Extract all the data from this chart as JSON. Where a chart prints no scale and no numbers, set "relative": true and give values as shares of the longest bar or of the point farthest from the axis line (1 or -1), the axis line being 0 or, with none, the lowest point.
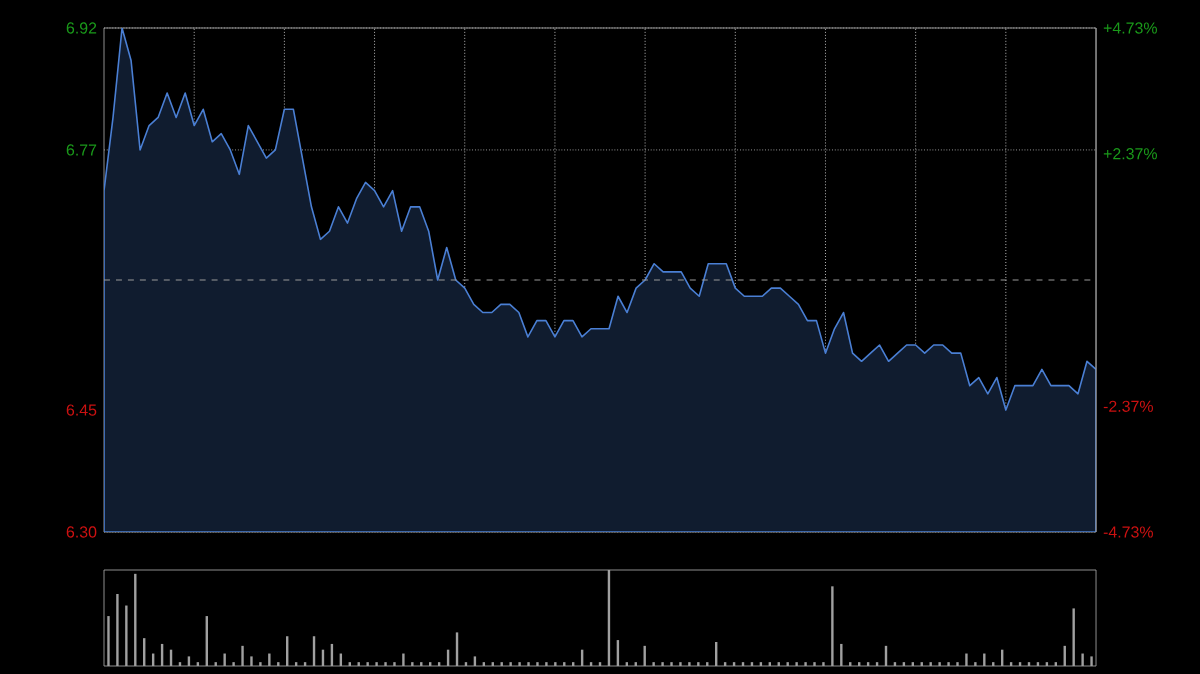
{
  "chart_data": [
    {
      "type": "area",
      "color": "#4a7fd4",
      "grid": true,
      "tick_labels": "y",
      "categories": [
        null,
        null,
        null,
        null,
        null,
        null,
        null,
        null,
        null,
        null,
        null,
        null,
        null,
        null,
        null,
        null,
        null,
        null,
        null,
        null,
        null,
        null,
        null,
        null,
        null,
        null,
        null,
        null,
        null,
        null,
        null,
        null,
        null,
        null,
        null,
        null,
        null,
        null,
        null,
        null,
        null,
        null,
        null,
        null,
        null,
        null,
        null,
        null,
        null,
        null,
        null,
        null,
        null,
        null,
        null,
        null,
        null,
        null,
        null,
        null,
        null,
        null,
        null,
        null,
        null,
        null,
        null,
        null,
        null,
        null,
        null,
        null,
        null,
        null,
        null,
        null,
        null,
        null,
        null,
        null,
        null,
        null,
        null,
        null,
        null,
        null,
        null,
        null,
        null,
        null,
        null,
        null,
        null,
        null,
        null,
        null,
        null,
        null,
        null,
        null,
        null,
        null,
        null,
        null,
        null,
        null,
        null,
        null,
        null,
        null,
        null
      ],
      "ylim": [
        6.3,
        6.92
      ],
      "yticks": [
        {
          "value": 6.3,
          "label": "6.30"
        },
        {
          "value": 6.45,
          "label": "6.45"
        },
        {
          "value": 6.77,
          "label": "6.77"
        },
        {
          "value": 6.92,
          "label": "6.92"
        }
      ],
      "y2lim": [
        -4.73,
        4.73
      ],
      "y2ticks": [
        {
          "value": -4.73,
          "label": "-4.73%"
        },
        {
          "value": -2.37,
          "label": "-2.37%"
        },
        {
          "value": 2.37,
          "label": "+2.37%"
        },
        {
          "value": 4.73,
          "label": "+4.73%"
        }
      ],
      "ref_lines": [
        {
          "axis": "y",
          "value": 6.61,
          "line_style": "dashed"
        }
      ],
      "values": [
        6.72,
        6.81,
        6.92,
        6.88,
        6.77,
        6.8,
        6.81,
        6.84,
        6.81,
        6.84,
        6.8,
        6.82,
        6.78,
        6.79,
        6.77,
        6.74,
        6.8,
        6.78,
        6.76,
        6.77,
        6.82,
        6.82,
        6.76,
        6.7,
        6.66,
        6.67,
        6.7,
        6.68,
        6.71,
        6.73,
        6.72,
        6.7,
        6.72,
        6.67,
        6.7,
        6.7,
        6.67,
        6.61,
        6.65,
        6.61,
        6.6,
        6.58,
        6.57,
        6.57,
        6.58,
        6.58,
        6.57,
        6.54,
        6.56,
        6.56,
        6.54,
        6.56,
        6.56,
        6.54,
        6.55,
        6.55,
        6.55,
        6.59,
        6.57,
        6.6,
        6.61,
        6.63,
        6.62,
        6.62,
        6.62,
        6.6,
        6.59,
        6.63,
        6.63,
        6.63,
        6.6,
        6.59,
        6.59,
        6.59,
        6.6,
        6.6,
        6.59,
        6.58,
        6.56,
        6.56,
        6.52,
        6.55,
        6.57,
        6.52,
        6.51,
        6.52,
        6.53,
        6.51,
        6.52,
        6.53,
        6.53,
        6.52,
        6.53,
        6.53,
        6.52,
        6.52,
        6.48,
        6.49,
        6.47,
        6.49,
        6.45,
        6.48,
        6.48,
        6.48,
        6.5,
        6.48,
        6.48,
        6.48,
        6.47,
        6.51,
        6.5
      ]
    },
    {
      "type": "bar",
      "relative": true,
      "color": "#a0a0a0",
      "categories": [
        null,
        null,
        null,
        null,
        null,
        null,
        null,
        null,
        null,
        null,
        null,
        null,
        null,
        null,
        null,
        null,
        null,
        null,
        null,
        null,
        null,
        null,
        null,
        null,
        null,
        null,
        null,
        null,
        null,
        null,
        null,
        null,
        null,
        null,
        null,
        null,
        null,
        null,
        null,
        null,
        null,
        null,
        null,
        null,
        null,
        null,
        null,
        null,
        null,
        null,
        null,
        null,
        null,
        null,
        null,
        null,
        null,
        null,
        null,
        null,
        null,
        null,
        null,
        null,
        null,
        null,
        null,
        null,
        null,
        null,
        null,
        null,
        null,
        null,
        null,
        null,
        null,
        null,
        null,
        null,
        null,
        null,
        null,
        null,
        null,
        null,
        null,
        null,
        null,
        null,
        null,
        null,
        null,
        null,
        null,
        null,
        null,
        null,
        null,
        null,
        null,
        null,
        null,
        null,
        null,
        null,
        null,
        null,
        null,
        null,
        null
      ],
      "values": [
        0.52,
        0.75,
        0.63,
        0.96,
        0.29,
        0.13,
        0.23,
        0.17,
        0.04,
        0.1,
        0.04,
        0.52,
        0.04,
        0.13,
        0.04,
        0.21,
        0.1,
        0.04,
        0.13,
        0.04,
        0.31,
        0.04,
        0.04,
        0.31,
        0.17,
        0.23,
        0.13,
        0.04,
        0.04,
        0.04,
        0.04,
        0.04,
        0.04,
        0.13,
        0.04,
        0.04,
        0.04,
        0.04,
        0.17,
        0.35,
        0.04,
        0.1,
        0.04,
        0.04,
        0.04,
        0.04,
        0.04,
        0.04,
        0.04,
        0.04,
        0.04,
        0.04,
        0.04,
        0.17,
        0.04,
        0.04,
        1.0,
        0.27,
        0.04,
        0.04,
        0.21,
        0.04,
        0.04,
        0.04,
        0.04,
        0.04,
        0.04,
        0.04,
        0.25,
        0.04,
        0.04,
        0.04,
        0.04,
        0.04,
        0.04,
        0.04,
        0.04,
        0.04,
        0.04,
        0.04,
        0.04,
        0.83,
        0.23,
        0.04,
        0.04,
        0.04,
        0.04,
        0.21,
        0.04,
        0.04,
        0.04,
        0.04,
        0.04,
        0.04,
        0.04,
        0.04,
        0.13,
        0.04,
        0.13,
        0.04,
        0.17,
        0.04,
        0.04,
        0.04,
        0.04,
        0.04,
        0.04,
        0.21,
        0.6,
        0.13,
        0.1
      ]
    }
  ]
}
